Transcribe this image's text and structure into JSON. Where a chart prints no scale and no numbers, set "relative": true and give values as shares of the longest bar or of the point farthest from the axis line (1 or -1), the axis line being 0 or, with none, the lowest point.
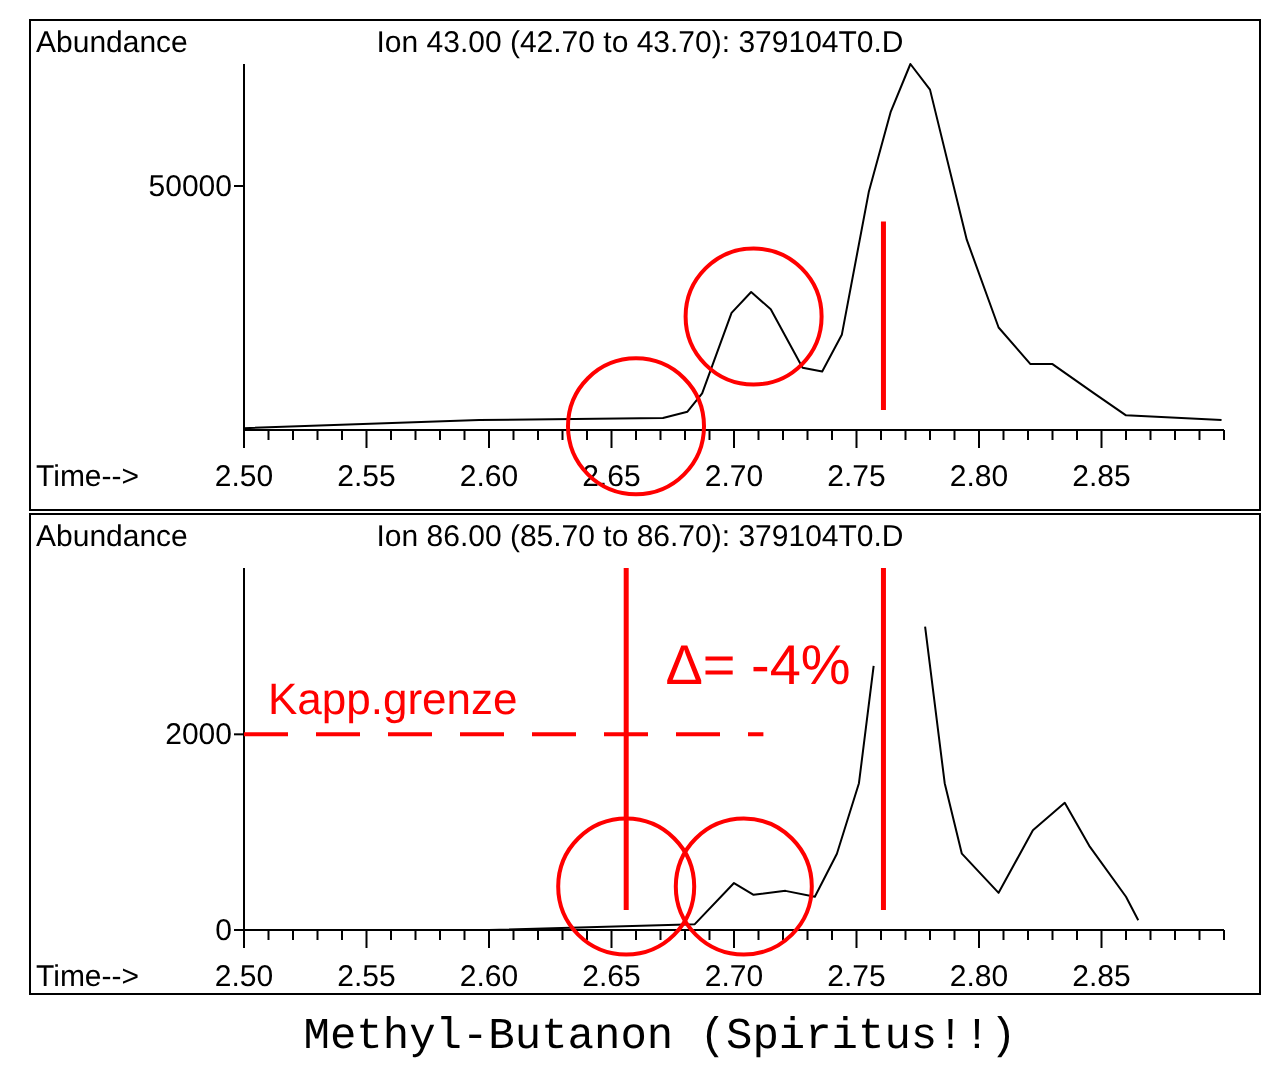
{
  "chart_data": [
    {
      "type": "line",
      "title": "Ion  43.00 (42.70 to 43.70): 379104T0.D",
      "ylabel": "Abundance",
      "xlabel": "Time-->",
      "relative": true,
      "series": [
        {
          "color": "#000000",
          "x": [
            2.5,
            2.596,
            2.671,
            2.681,
            2.687,
            2.699,
            2.707,
            2.715,
            2.728,
            2.736,
            2.744,
            2.755,
            2.764,
            2.772,
            2.78,
            2.795,
            2.808,
            2.821,
            2.83,
            2.847,
            2.86,
            2.899
          ],
          "values": [
            0.005,
            0.027,
            0.033,
            0.05,
            0.1,
            0.32,
            0.377,
            0.33,
            0.17,
            0.16,
            0.26,
            0.65,
            0.87,
            1,
            0.93,
            0.52,
            0.28,
            0.18,
            0.18,
            0.1,
            0.04,
            0.027
          ]
        }
      ],
      "xlim": [
        2.5,
        2.9
      ],
      "xticks": [
        {
          "value": 2.5,
          "label": "2.50"
        },
        {
          "value": 2.51,
          "label": null
        },
        {
          "value": 2.52,
          "label": null
        },
        {
          "value": 2.53,
          "label": null
        },
        {
          "value": 2.54,
          "label": null
        },
        2.55,
        {
          "value": 2.56,
          "label": null
        },
        {
          "value": 2.57,
          "label": null
        },
        {
          "value": 2.58,
          "label": null
        },
        {
          "value": 2.59,
          "label": null
        },
        {
          "value": 2.6,
          "label": "2.60"
        },
        {
          "value": 2.61,
          "label": null
        },
        {
          "value": 2.62,
          "label": null
        },
        {
          "value": 2.63,
          "label": null
        },
        {
          "value": 2.64,
          "label": null
        },
        2.65,
        {
          "value": 2.66,
          "label": null
        },
        {
          "value": 2.67,
          "label": null
        },
        {
          "value": 2.68,
          "label": null
        },
        {
          "value": 2.69,
          "label": null
        },
        {
          "value": 2.7,
          "label": "2.70"
        },
        {
          "value": 2.71,
          "label": null
        },
        {
          "value": 2.72,
          "label": null
        },
        {
          "value": 2.73,
          "label": null
        },
        {
          "value": 2.74,
          "label": null
        },
        2.75,
        {
          "value": 2.76,
          "label": null
        },
        {
          "value": 2.77,
          "label": null
        },
        {
          "value": 2.78,
          "label": null
        },
        {
          "value": 2.79,
          "label": null
        },
        {
          "value": 2.8,
          "label": "2.80"
        },
        {
          "value": 2.81,
          "label": null
        },
        {
          "value": 2.82,
          "label": null
        },
        {
          "value": 2.83,
          "label": null
        },
        {
          "value": 2.84,
          "label": null
        },
        2.85,
        {
          "value": 2.86,
          "label": null
        },
        {
          "value": 2.87,
          "label": null
        },
        {
          "value": 2.88,
          "label": null
        },
        {
          "value": 2.89,
          "label": null
        },
        {
          "value": 2.9,
          "label": null
        }
      ],
      "annotations": [
        "50000"
      ],
      "ref_lines": [
        {
          "axis": "x",
          "value": 2.761,
          "color": "#ff0000",
          "line_style": "solid"
        }
      ]
    },
    {
      "type": "line",
      "title": "Ion  86.00 (85.70 to 86.70): 379104T0.D",
      "ylabel": "Abundance",
      "xlabel": "Time-->",
      "series": [
        {
          "color": "#000000",
          "x": [
            2.5,
            2.6,
            2.684,
            2.7,
            2.708,
            2.721,
            2.733,
            2.742,
            2.751,
            2.757,
            2.764,
            2.772,
            2.778,
            2.786,
            2.793,
            2.808,
            2.822,
            2.835,
            2.845,
            2.86,
            2.865
          ],
          "values": [
            0,
            0,
            60,
            480,
            360,
            400,
            340,
            780,
            1500,
            2700,
            null,
            null,
            3100,
            1500,
            780,
            380,
            1020,
            1300,
            860,
            340,
            100
          ]
        }
      ],
      "xlim": [
        2.5,
        2.9
      ],
      "ylim": [
        0,
        3700
      ],
      "xticks": [
        {
          "value": 2.5,
          "label": "2.50"
        },
        {
          "value": 2.51,
          "label": null
        },
        {
          "value": 2.52,
          "label": null
        },
        {
          "value": 2.53,
          "label": null
        },
        {
          "value": 2.54,
          "label": null
        },
        2.55,
        {
          "value": 2.56,
          "label": null
        },
        {
          "value": 2.57,
          "label": null
        },
        {
          "value": 2.58,
          "label": null
        },
        {
          "value": 2.59,
          "label": null
        },
        {
          "value": 2.6,
          "label": "2.60"
        },
        {
          "value": 2.61,
          "label": null
        },
        {
          "value": 2.62,
          "label": null
        },
        {
          "value": 2.63,
          "label": null
        },
        {
          "value": 2.64,
          "label": null
        },
        2.65,
        {
          "value": 2.66,
          "label": null
        },
        {
          "value": 2.67,
          "label": null
        },
        {
          "value": 2.68,
          "label": null
        },
        {
          "value": 2.69,
          "label": null
        },
        {
          "value": 2.7,
          "label": "2.70"
        },
        {
          "value": 2.71,
          "label": null
        },
        {
          "value": 2.72,
          "label": null
        },
        {
          "value": 2.73,
          "label": null
        },
        {
          "value": 2.74,
          "label": null
        },
        2.75,
        {
          "value": 2.76,
          "label": null
        },
        {
          "value": 2.77,
          "label": null
        },
        {
          "value": 2.78,
          "label": null
        },
        {
          "value": 2.79,
          "label": null
        },
        {
          "value": 2.8,
          "label": "2.80"
        },
        {
          "value": 2.81,
          "label": null
        },
        {
          "value": 2.82,
          "label": null
        },
        {
          "value": 2.83,
          "label": null
        },
        {
          "value": 2.84,
          "label": null
        },
        2.85,
        {
          "value": 2.86,
          "label": null
        },
        {
          "value": 2.87,
          "label": null
        },
        {
          "value": 2.88,
          "label": null
        },
        {
          "value": 2.89,
          "label": null
        },
        {
          "value": 2.9,
          "label": null
        }
      ],
      "yticks": [
        0,
        2000
      ],
      "ref_lines": [
        {
          "axis": "x",
          "value": 2.656,
          "color": "#ff0000",
          "line_style": "solid"
        },
        {
          "axis": "x",
          "value": 2.761,
          "color": "#ff0000",
          "line_style": "solid"
        },
        {
          "axis": "y",
          "value": 2000,
          "label": "Kapp.grenze",
          "color": "#ff0000",
          "line_style": "dashed"
        }
      ],
      "annotations": [
        "Δ= -4%",
        "Methyl-Butanon (Spiritus!!)"
      ]
    }
  ]
}
